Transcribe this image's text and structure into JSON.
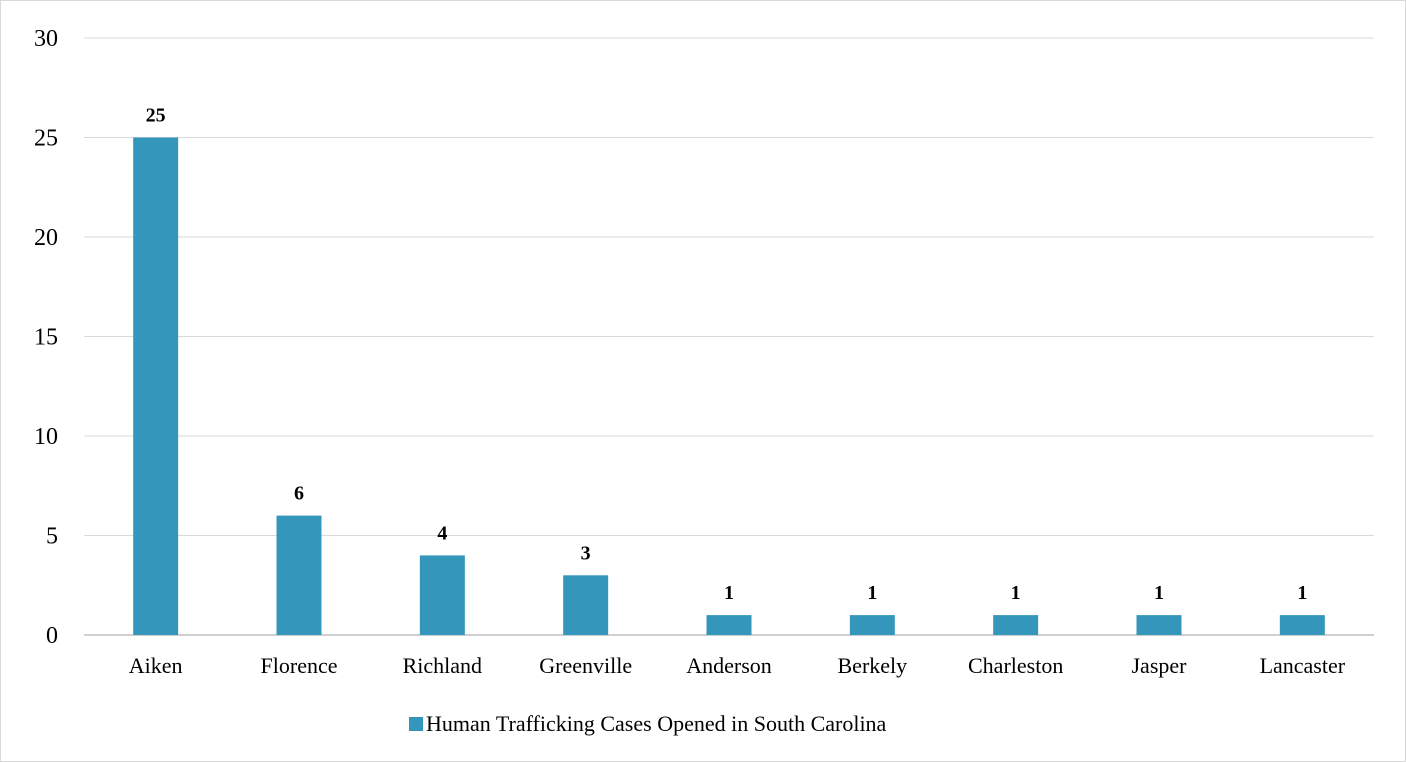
{
  "chart_data": {
    "type": "bar",
    "categories": [
      "Aiken",
      "Florence",
      "Richland",
      "Greenville",
      "Anderson",
      "Berkely",
      "Charleston",
      "Jasper",
      "Lancaster"
    ],
    "series": [
      {
        "name": "Human Trafficking Cases Opened in South Carolina",
        "values": [
          25,
          6,
          4,
          3,
          1,
          1,
          1,
          1,
          1
        ],
        "color": "#3596bb"
      }
    ],
    "data_labels": [
      "25",
      "6",
      "4",
      "3",
      "1",
      "1",
      "1",
      "1",
      "1"
    ],
    "y_ticks": [
      "0",
      "5",
      "10",
      "15",
      "20",
      "25",
      "30"
    ],
    "ylim": [
      0,
      30
    ],
    "grid": true,
    "gridline_color": "#d9d9d9",
    "legend_position": "bottom",
    "title": "",
    "xlabel": "",
    "ylabel": ""
  }
}
